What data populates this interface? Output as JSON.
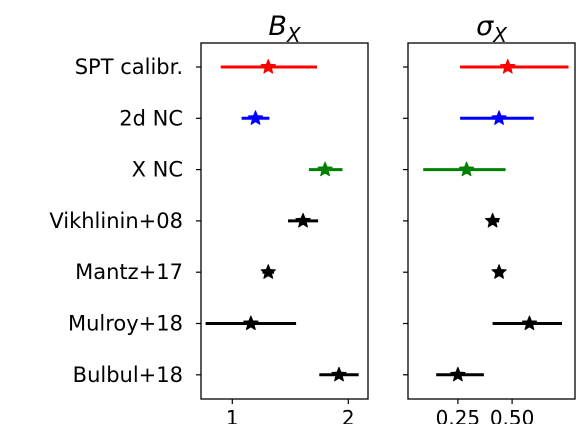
{
  "chart_data": [
    {
      "type": "scatter",
      "title": {
        "base": "B",
        "sub": "X"
      },
      "categories": [
        "SPT calibr.",
        "2d NC",
        "X NC",
        "Vikhlinin+08",
        "Mantz+17",
        "Mulroy+18",
        "Bulbul+18"
      ],
      "xlim": [
        0.73,
        2.17
      ],
      "xticks": [
        1,
        2
      ],
      "xticklabels": [
        "1",
        "2"
      ],
      "points": [
        {
          "label": "SPT calibr.",
          "value": 1.31,
          "low": 0.9,
          "high": 1.73,
          "color": "#ff0000"
        },
        {
          "label": "2d NC",
          "value": 1.2,
          "low": 1.08,
          "high": 1.32,
          "color": "#0000ff"
        },
        {
          "label": "X NC",
          "value": 1.8,
          "low": 1.66,
          "high": 1.95,
          "color": "#008000"
        },
        {
          "label": "Vikhlinin+08",
          "value": 1.61,
          "low": 1.48,
          "high": 1.74,
          "color": "#000000"
        },
        {
          "label": "Mantz+17",
          "value": 1.31,
          "low": 1.26,
          "high": 1.36,
          "color": "#000000"
        },
        {
          "label": "Mulroy+18",
          "value": 1.16,
          "low": 0.77,
          "high": 1.55,
          "color": "#000000"
        },
        {
          "label": "Bulbul+18",
          "value": 1.92,
          "low": 1.75,
          "high": 2.09,
          "color": "#000000"
        }
      ],
      "grid": false
    },
    {
      "type": "scatter",
      "title": {
        "base": "σ",
        "sub": "X"
      },
      "categories": [
        "SPT calibr.",
        "2d NC",
        "X NC",
        "Vikhlinin+08",
        "Mantz+17",
        "Mulroy+18",
        "Bulbul+18"
      ],
      "xlim": [
        0.02,
        0.79
      ],
      "xticks": [
        0.25,
        0.5
      ],
      "xticklabels": [
        "0.25",
        "0.50"
      ],
      "points": [
        {
          "label": "SPT calibr.",
          "value": 0.48,
          "low": 0.26,
          "high": 0.76,
          "color": "#ff0000"
        },
        {
          "label": "2d NC",
          "value": 0.44,
          "low": 0.26,
          "high": 0.6,
          "color": "#0000ff"
        },
        {
          "label": "X NC",
          "value": 0.29,
          "low": 0.09,
          "high": 0.47,
          "color": "#008000"
        },
        {
          "label": "Vikhlinin+08",
          "value": 0.41,
          "low": 0.39,
          "high": 0.44,
          "color": "#000000"
        },
        {
          "label": "Mantz+17",
          "value": 0.44,
          "low": 0.42,
          "high": 0.46,
          "color": "#000000"
        },
        {
          "label": "Mulroy+18",
          "value": 0.58,
          "low": 0.41,
          "high": 0.73,
          "color": "#000000"
        },
        {
          "label": "Bulbul+18",
          "value": 0.25,
          "low": 0.15,
          "high": 0.37,
          "color": "#000000"
        }
      ],
      "grid": false
    }
  ]
}
